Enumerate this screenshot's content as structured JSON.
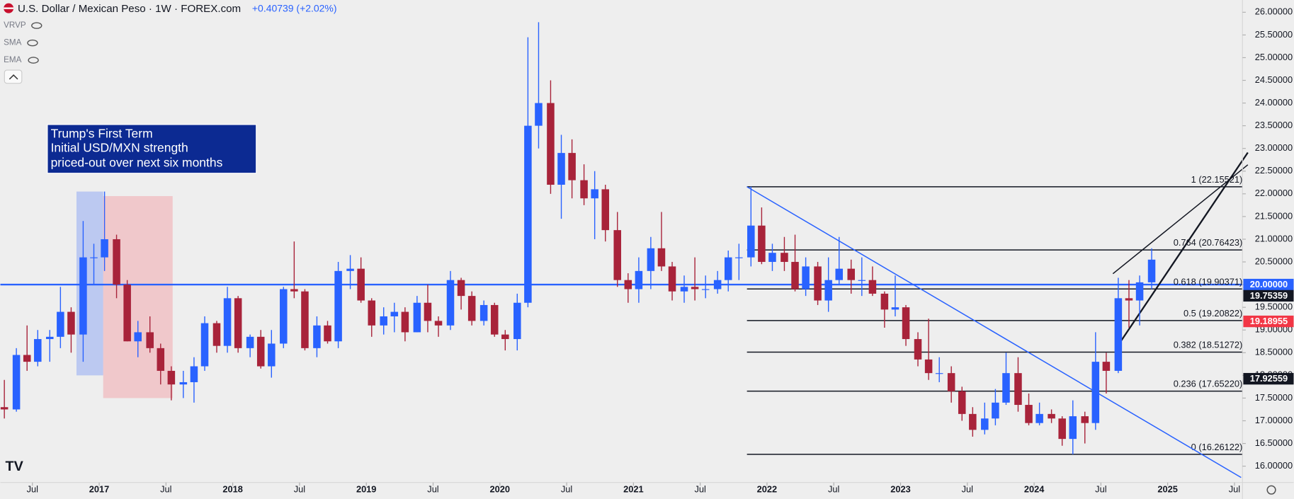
{
  "header": {
    "title": "U.S. Dollar / Mexican Peso · 1W · FOREX.com",
    "change": "+0.40739 (+2.02%)",
    "indicators": [
      "VRVP",
      "SMA",
      "EMA"
    ]
  },
  "chart_data": {
    "type": "candlestick",
    "annotation": [
      "Trump's First Term",
      "Initial USD/MXN strength",
      "priced-out over next six months"
    ],
    "up_color": "#2962ff",
    "down_color": "#a8233a",
    "xlim": [
      2016.26,
      2025.56
    ],
    "ylim": [
      15.64,
      26.27
    ],
    "xticks": [
      {
        "value": 2016.5,
        "label": "Jul"
      },
      2017,
      {
        "value": 2017.5,
        "label": "Jul"
      },
      2018,
      {
        "value": 2018.5,
        "label": "Jul"
      },
      2019,
      {
        "value": 2019.5,
        "label": "Jul"
      },
      2020,
      {
        "value": 2020.5,
        "label": "Jul"
      },
      2021,
      {
        "value": 2021.5,
        "label": "Jul"
      },
      2022,
      {
        "value": 2022.5,
        "label": "Jul"
      },
      2023,
      {
        "value": 2023.5,
        "label": "Jul"
      },
      2024,
      {
        "value": 2024.5,
        "label": "Jul"
      },
      2025,
      {
        "value": 2025.5,
        "label": "Jul"
      }
    ],
    "yticks": [
      {
        "value": 16,
        "label": "16.00000"
      },
      {
        "value": 16.5,
        "label": "16.50000"
      },
      {
        "value": 17,
        "label": "17.00000"
      },
      {
        "value": 17.5,
        "label": "17.50000"
      },
      {
        "value": 18,
        "label": "18.00000"
      },
      {
        "value": 18.5,
        "label": "18.50000"
      },
      {
        "value": 19,
        "label": "19.00000"
      },
      {
        "value": 19.5,
        "label": "19.50000"
      },
      {
        "value": 20,
        "label": "20.00000"
      },
      {
        "value": 20.5,
        "label": "20.50000"
      },
      {
        "value": 21,
        "label": "21.00000"
      },
      {
        "value": 21.5,
        "label": "21.50000"
      },
      {
        "value": 22,
        "label": "22.00000"
      },
      {
        "value": 22.5,
        "label": "22.50000"
      },
      {
        "value": 23,
        "label": "23.00000"
      },
      {
        "value": 23.5,
        "label": "23.50000"
      },
      {
        "value": 24,
        "label": "24.00000"
      },
      {
        "value": 24.5,
        "label": "24.50000"
      },
      {
        "value": 25,
        "label": "25.00000"
      },
      {
        "value": 25.5,
        "label": "25.50000"
      },
      {
        "value": 26,
        "label": "26.00000"
      }
    ],
    "x": [
      2016.29,
      2016.38,
      2016.46,
      2016.54,
      2016.63,
      2016.71,
      2016.79,
      2016.88,
      2016.96,
      2017.04,
      2017.13,
      2017.21,
      2017.29,
      2017.38,
      2017.46,
      2017.54,
      2017.63,
      2017.71,
      2017.79,
      2017.88,
      2017.96,
      2018.04,
      2018.13,
      2018.21,
      2018.29,
      2018.38,
      2018.46,
      2018.54,
      2018.63,
      2018.71,
      2018.79,
      2018.88,
      2018.96,
      2019.04,
      2019.13,
      2019.21,
      2019.29,
      2019.38,
      2019.46,
      2019.54,
      2019.63,
      2019.71,
      2019.79,
      2019.88,
      2019.96,
      2020.04,
      2020.13,
      2020.21,
      2020.29,
      2020.38,
      2020.46,
      2020.54,
      2020.63,
      2020.71,
      2020.79,
      2020.88,
      2020.96,
      2021.04,
      2021.13,
      2021.21,
      2021.29,
      2021.38,
      2021.46,
      2021.54,
      2021.63,
      2021.71,
      2021.79,
      2021.88,
      2021.96,
      2022.04,
      2022.13,
      2022.21,
      2022.29,
      2022.38,
      2022.46,
      2022.54,
      2022.63,
      2022.71,
      2022.79,
      2022.88,
      2022.96,
      2023.04,
      2023.13,
      2023.21,
      2023.29,
      2023.38,
      2023.46,
      2023.54,
      2023.63,
      2023.71,
      2023.79,
      2023.88,
      2023.96,
      2024.04,
      2024.13,
      2024.21,
      2024.29,
      2024.38,
      2024.46,
      2024.54,
      2024.63,
      2024.71,
      2024.79,
      2024.88
    ],
    "candles": [
      [
        17.3,
        17.9,
        17.05,
        17.25
      ],
      [
        17.25,
        18.6,
        17.2,
        18.45
      ],
      [
        18.45,
        19.1,
        18.1,
        18.3
      ],
      [
        18.3,
        19.0,
        18.2,
        18.8
      ],
      [
        18.8,
        19.0,
        18.3,
        18.85
      ],
      [
        18.85,
        19.95,
        18.6,
        19.4
      ],
      [
        19.4,
        19.5,
        18.5,
        18.9
      ],
      [
        18.9,
        21.4,
        18.3,
        20.6
      ],
      [
        20.6,
        20.9,
        20.0,
        20.6
      ],
      [
        20.6,
        22.05,
        20.3,
        21.0
      ],
      [
        21.0,
        21.1,
        19.7,
        20.0
      ],
      [
        20.0,
        20.1,
        18.75,
        18.75
      ],
      [
        18.75,
        19.2,
        18.4,
        18.95
      ],
      [
        18.95,
        19.3,
        18.5,
        18.6
      ],
      [
        18.6,
        18.7,
        17.8,
        18.1
      ],
      [
        18.1,
        18.2,
        17.45,
        17.8
      ],
      [
        17.8,
        18.1,
        17.5,
        17.85
      ],
      [
        17.85,
        18.4,
        17.4,
        18.2
      ],
      [
        18.2,
        19.3,
        18.1,
        19.15
      ],
      [
        19.15,
        19.2,
        18.5,
        18.65
      ],
      [
        18.65,
        19.95,
        18.5,
        19.7
      ],
      [
        19.7,
        19.75,
        18.5,
        18.6
      ],
      [
        18.6,
        18.9,
        18.4,
        18.85
      ],
      [
        18.85,
        19.0,
        18.15,
        18.2
      ],
      [
        18.2,
        19.0,
        17.95,
        18.7
      ],
      [
        18.7,
        19.95,
        18.6,
        19.9
      ],
      [
        19.9,
        20.95,
        19.7,
        19.85
      ],
      [
        19.85,
        19.9,
        18.55,
        18.6
      ],
      [
        18.6,
        19.3,
        18.4,
        19.1
      ],
      [
        19.1,
        19.2,
        18.7,
        18.75
      ],
      [
        18.75,
        20.5,
        18.6,
        20.3
      ],
      [
        20.3,
        20.65,
        19.9,
        20.35
      ],
      [
        20.35,
        20.6,
        19.6,
        19.65
      ],
      [
        19.65,
        19.7,
        18.85,
        19.1
      ],
      [
        19.1,
        19.5,
        18.9,
        19.3
      ],
      [
        19.3,
        19.6,
        18.95,
        19.4
      ],
      [
        19.4,
        19.5,
        18.75,
        18.95
      ],
      [
        18.95,
        19.75,
        18.95,
        19.6
      ],
      [
        19.6,
        20.0,
        18.95,
        19.2
      ],
      [
        19.2,
        19.3,
        18.85,
        19.1
      ],
      [
        19.1,
        20.3,
        19.0,
        20.1
      ],
      [
        20.1,
        20.15,
        19.45,
        19.75
      ],
      [
        19.75,
        19.85,
        19.1,
        19.2
      ],
      [
        19.2,
        19.65,
        19.1,
        19.55
      ],
      [
        19.55,
        19.6,
        18.85,
        18.9
      ],
      [
        18.9,
        19.0,
        18.55,
        18.8
      ],
      [
        18.8,
        19.8,
        18.55,
        19.6
      ],
      [
        19.6,
        25.45,
        19.5,
        23.5
      ],
      [
        23.5,
        25.78,
        23.0,
        24.0
      ],
      [
        24.0,
        24.5,
        22.0,
        22.2
      ],
      [
        22.2,
        23.3,
        21.45,
        22.9
      ],
      [
        22.9,
        23.2,
        21.9,
        22.3
      ],
      [
        22.3,
        22.65,
        21.75,
        21.9
      ],
      [
        21.9,
        22.5,
        21.0,
        22.1
      ],
      [
        22.1,
        22.2,
        20.95,
        21.2
      ],
      [
        21.2,
        21.6,
        19.95,
        20.1
      ],
      [
        20.1,
        20.25,
        19.6,
        19.9
      ],
      [
        19.9,
        20.6,
        19.6,
        20.3
      ],
      [
        20.3,
        21.05,
        19.9,
        20.8
      ],
      [
        20.8,
        21.6,
        20.3,
        20.4
      ],
      [
        20.4,
        20.5,
        19.65,
        19.85
      ],
      [
        19.85,
        20.2,
        19.6,
        19.95
      ],
      [
        19.95,
        20.6,
        19.65,
        19.9
      ],
      [
        19.9,
        20.2,
        19.7,
        19.9
      ],
      [
        19.9,
        20.3,
        19.8,
        20.1
      ],
      [
        20.1,
        20.75,
        19.85,
        20.6
      ],
      [
        20.6,
        20.9,
        20.1,
        20.6
      ],
      [
        20.6,
        22.16,
        20.4,
        21.3
      ],
      [
        21.3,
        21.7,
        20.45,
        20.5
      ],
      [
        20.5,
        20.9,
        20.3,
        20.7
      ],
      [
        20.7,
        21.05,
        20.3,
        20.5
      ],
      [
        20.5,
        21.1,
        19.85,
        19.9
      ],
      [
        19.9,
        20.6,
        19.75,
        20.4
      ],
      [
        20.4,
        20.5,
        19.55,
        19.65
      ],
      [
        19.65,
        20.6,
        19.4,
        20.1
      ],
      [
        20.1,
        21.05,
        20.0,
        20.35
      ],
      [
        20.35,
        20.55,
        19.8,
        20.1
      ],
      [
        20.1,
        20.6,
        19.75,
        20.1
      ],
      [
        20.1,
        20.4,
        19.75,
        19.8
      ],
      [
        19.8,
        19.85,
        19.05,
        19.45
      ],
      [
        19.45,
        20.2,
        19.3,
        19.5
      ],
      [
        19.5,
        19.55,
        18.65,
        18.8
      ],
      [
        18.8,
        18.95,
        18.2,
        18.35
      ],
      [
        18.35,
        19.25,
        17.9,
        18.05
      ],
      [
        18.05,
        18.4,
        17.85,
        18.05
      ],
      [
        18.05,
        18.2,
        17.4,
        17.65
      ],
      [
        17.65,
        17.75,
        17.0,
        17.15
      ],
      [
        17.15,
        17.3,
        16.65,
        16.8
      ],
      [
        16.8,
        17.4,
        16.7,
        17.05
      ],
      [
        17.05,
        17.7,
        16.9,
        17.4
      ],
      [
        17.4,
        18.5,
        17.35,
        18.05
      ],
      [
        18.05,
        18.4,
        17.2,
        17.35
      ],
      [
        17.35,
        17.6,
        16.9,
        16.95
      ],
      [
        16.95,
        17.4,
        16.9,
        17.15
      ],
      [
        17.15,
        17.25,
        16.95,
        17.05
      ],
      [
        17.05,
        17.1,
        16.45,
        16.6
      ],
      [
        16.6,
        17.45,
        16.26,
        17.1
      ],
      [
        17.1,
        17.2,
        16.5,
        16.95
      ],
      [
        16.95,
        18.95,
        16.8,
        18.3
      ],
      [
        18.3,
        18.5,
        17.6,
        18.1
      ],
      [
        18.1,
        20.15,
        18.05,
        19.7
      ],
      [
        19.7,
        20.1,
        19.05,
        19.65
      ],
      [
        19.65,
        20.2,
        19.1,
        20.05
      ],
      [
        20.05,
        20.8,
        19.9,
        20.55
      ]
    ],
    "hline": {
      "value": 20,
      "color": "#2962ff"
    },
    "zones": [
      {
        "x": [
          2016.83,
          2017.03
        ],
        "y": [
          18.0,
          22.05
        ],
        "color": "#7f9cf5"
      },
      {
        "x": [
          2017.03,
          2017.55
        ],
        "y": [
          17.5,
          21.95
        ],
        "color": "#f29aa0"
      }
    ],
    "fib": {
      "x": [
        2021.85,
        2025.6
      ],
      "levels": [
        {
          "value": 22.15521,
          "label": "1 (22.15521)"
        },
        {
          "value": 20.76423,
          "label": "0.764 (20.76423)"
        },
        {
          "value": 19.90371,
          "label": "0.618 (19.90371)"
        },
        {
          "value": 19.20822,
          "label": "0.5 (19.20822)"
        },
        {
          "value": 18.51272,
          "label": "0.382 (18.51272)"
        },
        {
          "value": 17.6522,
          "label": "0.236 (17.65220)"
        },
        {
          "value": 16.26122,
          "label": "0 (16.26122)"
        }
      ]
    },
    "trendlines": [
      {
        "from": [
          2021.85,
          22.155
        ],
        "to": [
          2025.55,
          15.75
        ],
        "color": "#2962ff"
      },
      {
        "from": [
          2024.61,
          18.58
        ],
        "to": [
          2025.6,
          22.91
        ],
        "color": "#131722"
      },
      {
        "from": [
          2024.59,
          20.24
        ],
        "to": [
          2025.6,
          22.64
        ],
        "color": "#131722"
      }
    ],
    "price_tags": [
      {
        "value": 20,
        "label": "20.00000",
        "color": "#2962ff"
      },
      {
        "value": 19.75359,
        "label": "19.75359",
        "color": "#131722"
      },
      {
        "value": 19.18955,
        "label": "19.18955",
        "color": "#f23645"
      },
      {
        "value": 17.92559,
        "label": "17.92559",
        "color": "#131722"
      }
    ]
  }
}
